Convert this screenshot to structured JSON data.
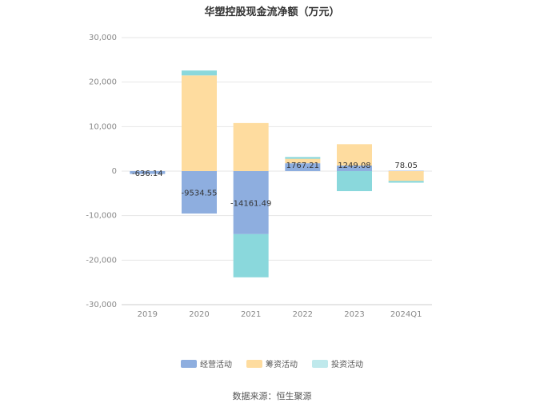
{
  "title": "华塑控股现金流净额（万元）",
  "source": "数据来源：恒生聚源",
  "colors": {
    "operating": "#8eaedf",
    "financing": "#fedc9f",
    "investing": "#8ad8dc",
    "grid": "#e6e6e6",
    "axis": "#cccccc"
  },
  "chart_data": {
    "type": "bar",
    "stacked": true,
    "categories": [
      "2019",
      "2020",
      "2021",
      "2022",
      "2023",
      "2024Q1"
    ],
    "series": [
      {
        "name": "经营活动",
        "values": [
          -636.14,
          -9534.55,
          -14161.49,
          1767.21,
          1249.08,
          78.05
        ]
      },
      {
        "name": "筹资活动",
        "values": [
          0,
          21500,
          10800,
          1000,
          4800,
          -2200
        ]
      },
      {
        "name": "投资活动",
        "values": [
          0,
          1100,
          -9700,
          400,
          -4500,
          -400
        ]
      }
    ],
    "data_labels": [
      "-636.14",
      "-9534.55",
      "-14161.49",
      "1767.21",
      "1249.08",
      "78.05"
    ],
    "y_ticks": [
      "30,000",
      "20,000",
      "10,000",
      "0",
      "-10,000",
      "-20,000",
      "-30,000"
    ],
    "ylim": [
      -30000,
      30000
    ],
    "grid": true,
    "legend_position": "bottom"
  }
}
